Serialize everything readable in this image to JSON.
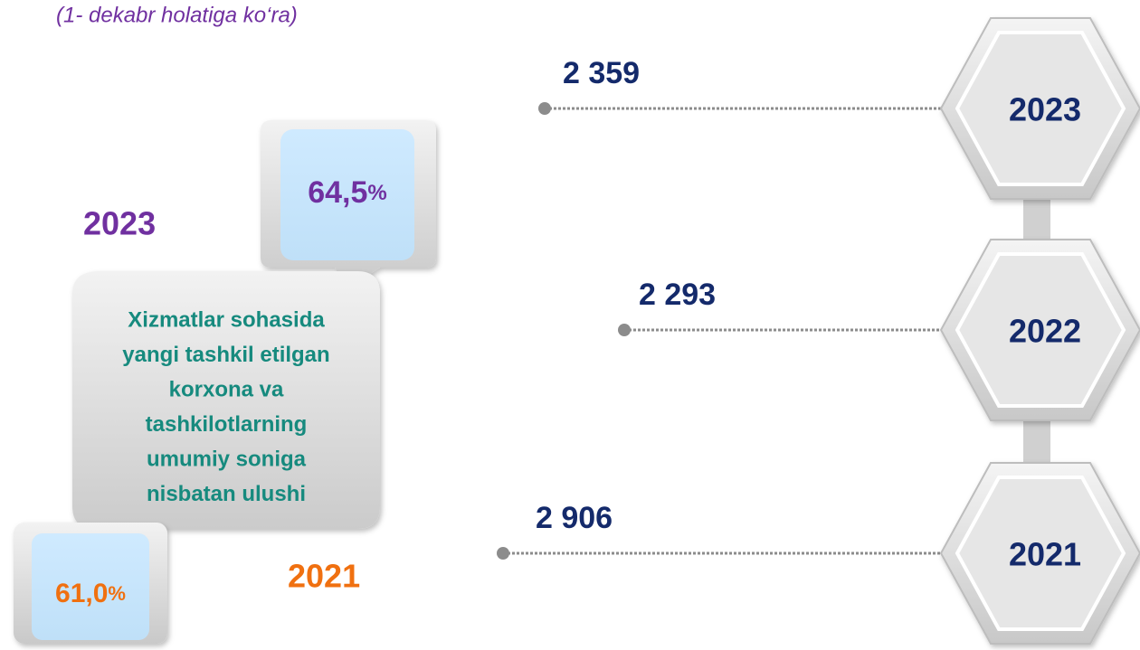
{
  "subtitle": "(1- dekabr holatiga ko‘ra)",
  "share": {
    "top": {
      "year": "2023",
      "value": "64,5",
      "unit": "%"
    },
    "bottom": {
      "year": "2021",
      "value": "61,0",
      "unit": "%"
    },
    "description": [
      "Xizmatlar sohasida",
      "yangi tashkil etilgan",
      "korxona va",
      "tashkilotlarning",
      "umumiy soniga",
      "nisbatan ulushi"
    ]
  },
  "timeline": [
    {
      "year": "2023",
      "value": "2 359"
    },
    {
      "year": "2022",
      "value": "2 293"
    },
    {
      "year": "2021",
      "value": "2 906"
    }
  ]
}
